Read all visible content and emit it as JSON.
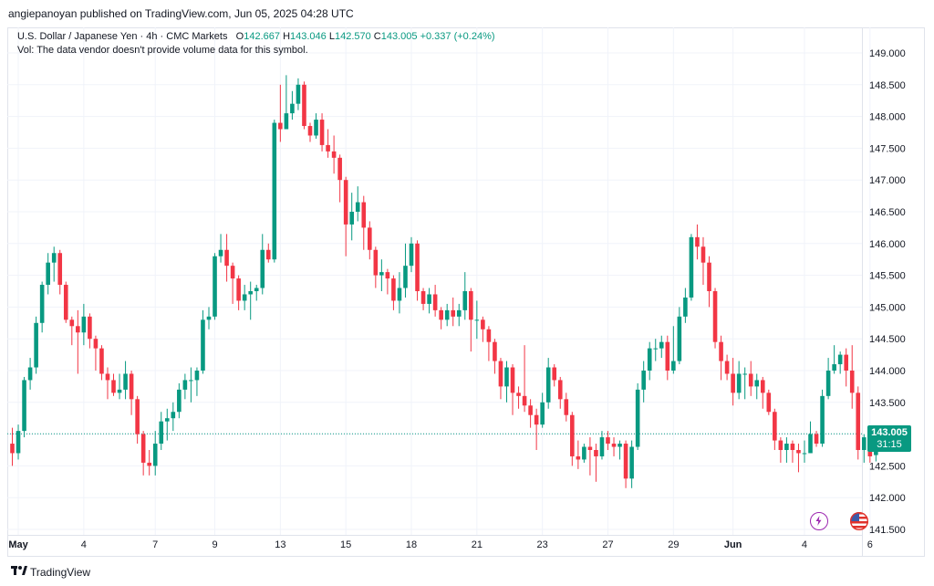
{
  "header": {
    "text": "angiepanoyan published on TradingView.com, Jun 05, 2025 04:28 UTC"
  },
  "legend": {
    "title": "U.S. Dollar / Japanese Yen · 4h · CMC Markets",
    "o_label": "O",
    "o_value": "142.667",
    "h_label": "H",
    "h_value": "143.046",
    "l_label": "L",
    "l_value": "142.570",
    "c_label": "C",
    "c_value": "143.005",
    "change": "+0.337 (+0.24%)",
    "vol_note": "Vol: The data vendor doesn't provide volume data for this symbol."
  },
  "price_tag": {
    "price": "143.005",
    "timer": "31:15"
  },
  "footer": {
    "brand": "TradingView"
  },
  "icons": [
    "bolt-icon",
    "us-flag-icon",
    "tradingview-logo-icon"
  ],
  "colors": {
    "up": "#089981",
    "down": "#f23645",
    "grid": "#f0f3fa",
    "text": "#131722"
  },
  "chart_data": {
    "type": "candlestick",
    "title": "U.S. Dollar / Japanese Yen · 4h · CMC Markets",
    "interval": "4h",
    "ylim": [
      141.5,
      149.0
    ],
    "y_ticks": [
      "149.000",
      "148.500",
      "148.000",
      "147.500",
      "147.000",
      "146.500",
      "146.000",
      "145.500",
      "145.000",
      "144.500",
      "144.000",
      "143.500",
      "143.000",
      "142.500",
      "142.000",
      "141.500"
    ],
    "x_ticks": [
      {
        "label": "May",
        "index": 1
      },
      {
        "label": "4",
        "index": 12
      },
      {
        "label": "7",
        "index": 24
      },
      {
        "label": "9",
        "index": 34
      },
      {
        "label": "13",
        "index": 45
      },
      {
        "label": "15",
        "index": 56
      },
      {
        "label": "18",
        "index": 67
      },
      {
        "label": "21",
        "index": 78
      },
      {
        "label": "23",
        "index": 89
      },
      {
        "label": "27",
        "index": 100
      },
      {
        "label": "29",
        "index": 111
      },
      {
        "label": "Jun",
        "index": 121
      },
      {
        "label": "4",
        "index": 133
      },
      {
        "label": "6",
        "index": 144
      }
    ],
    "last_price": 143.005,
    "grid": true,
    "candles": [
      [
        142.85,
        142.7,
        143.1,
        142.5
      ],
      [
        142.7,
        143.05,
        143.15,
        142.6
      ],
      [
        143.05,
        143.85,
        143.9,
        142.95
      ],
      [
        143.85,
        144.05,
        144.2,
        143.7
      ],
      [
        144.05,
        144.75,
        144.85,
        143.95
      ],
      [
        144.75,
        145.35,
        145.4,
        144.6
      ],
      [
        145.35,
        145.7,
        145.85,
        145.2
      ],
      [
        145.7,
        145.85,
        145.95,
        145.4
      ],
      [
        145.85,
        145.35,
        145.9,
        145.2
      ],
      [
        145.35,
        144.8,
        145.4,
        144.75
      ],
      [
        144.8,
        144.7,
        144.85,
        144.4
      ],
      [
        144.7,
        144.6,
        144.95,
        143.95
      ],
      [
        144.6,
        144.85,
        145.05,
        144.4
      ],
      [
        144.85,
        144.5,
        144.9,
        144.35
      ],
      [
        144.5,
        144.35,
        144.55,
        144.0
      ],
      [
        144.35,
        143.95,
        144.4,
        143.85
      ],
      [
        143.95,
        143.85,
        144.05,
        143.55
      ],
      [
        143.85,
        143.65,
        143.95,
        143.6
      ],
      [
        143.65,
        143.7,
        143.95,
        143.55
      ],
      [
        143.7,
        143.95,
        144.15,
        143.55
      ],
      [
        143.95,
        143.55,
        144.0,
        143.3
      ],
      [
        143.55,
        143.0,
        143.6,
        142.85
      ],
      [
        143.0,
        142.55,
        143.05,
        142.35
      ],
      [
        142.55,
        142.5,
        142.75,
        142.35
      ],
      [
        142.5,
        142.85,
        143.05,
        142.35
      ],
      [
        142.85,
        143.2,
        143.35,
        142.75
      ],
      [
        143.2,
        143.25,
        143.4,
        142.9
      ],
      [
        143.25,
        143.35,
        143.5,
        143.05
      ],
      [
        143.35,
        143.7,
        143.8,
        143.25
      ],
      [
        143.7,
        143.85,
        143.95,
        143.55
      ],
      [
        143.85,
        143.85,
        144.05,
        143.5
      ],
      [
        143.85,
        144.0,
        144.05,
        143.6
      ],
      [
        144.0,
        144.8,
        144.95,
        143.95
      ],
      [
        144.8,
        144.85,
        145.0,
        144.65
      ],
      [
        144.85,
        145.8,
        145.85,
        144.8
      ],
      [
        145.8,
        145.9,
        146.15,
        145.7
      ],
      [
        145.9,
        145.65,
        146.15,
        145.4
      ],
      [
        145.65,
        145.45,
        145.7,
        145.05
      ],
      [
        145.45,
        145.1,
        145.5,
        144.95
      ],
      [
        145.1,
        145.2,
        145.35,
        144.95
      ],
      [
        145.2,
        145.25,
        145.4,
        144.8
      ],
      [
        145.25,
        145.3,
        145.35,
        145.1
      ],
      [
        145.3,
        145.9,
        146.15,
        145.2
      ],
      [
        145.9,
        145.75,
        146.0,
        145.7
      ],
      [
        145.75,
        147.9,
        147.95,
        145.7
      ],
      [
        147.9,
        147.8,
        148.5,
        147.6
      ],
      [
        147.8,
        148.05,
        148.65,
        147.85
      ],
      [
        148.05,
        148.2,
        148.4,
        147.95
      ],
      [
        148.2,
        148.5,
        148.6,
        148.1
      ],
      [
        148.5,
        147.85,
        148.55,
        147.8
      ],
      [
        147.85,
        147.7,
        147.9,
        147.6
      ],
      [
        147.7,
        147.95,
        148.05,
        147.65
      ],
      [
        147.95,
        147.55,
        148.05,
        147.45
      ],
      [
        147.55,
        147.45,
        147.8,
        147.35
      ],
      [
        147.45,
        147.35,
        147.7,
        147.1
      ],
      [
        147.35,
        147.0,
        147.4,
        146.65
      ],
      [
        147.0,
        146.3,
        147.05,
        145.8
      ],
      [
        146.3,
        146.5,
        146.8,
        146.05
      ],
      [
        146.5,
        146.65,
        146.9,
        146.35
      ],
      [
        146.65,
        146.25,
        146.75,
        145.9
      ],
      [
        146.25,
        145.9,
        146.35,
        145.75
      ],
      [
        145.9,
        145.5,
        145.95,
        145.3
      ],
      [
        145.5,
        145.55,
        145.75,
        145.25
      ],
      [
        145.55,
        145.45,
        145.6,
        145.2
      ],
      [
        145.45,
        145.1,
        145.5,
        144.95
      ],
      [
        145.1,
        145.3,
        145.55,
        144.9
      ],
      [
        145.3,
        145.65,
        146.0,
        145.15
      ],
      [
        145.65,
        146.0,
        146.1,
        145.55
      ],
      [
        146.0,
        145.25,
        146.05,
        145.1
      ],
      [
        145.25,
        145.05,
        145.3,
        144.95
      ],
      [
        145.05,
        145.2,
        145.3,
        144.9
      ],
      [
        145.2,
        144.95,
        145.35,
        144.85
      ],
      [
        144.95,
        144.8,
        145.0,
        144.65
      ],
      [
        144.8,
        144.95,
        145.05,
        144.7
      ],
      [
        144.95,
        144.85,
        145.15,
        144.7
      ],
      [
        144.85,
        144.95,
        145.05,
        144.7
      ],
      [
        144.95,
        145.25,
        145.55,
        144.8
      ],
      [
        145.25,
        144.8,
        145.3,
        144.3
      ],
      [
        144.8,
        144.8,
        145.1,
        144.5
      ],
      [
        144.8,
        144.65,
        144.85,
        144.45
      ],
      [
        144.65,
        144.45,
        144.7,
        144.15
      ],
      [
        144.45,
        144.15,
        144.5,
        143.95
      ],
      [
        144.15,
        143.75,
        144.2,
        143.55
      ],
      [
        143.75,
        144.05,
        144.15,
        143.5
      ],
      [
        144.05,
        143.65,
        144.1,
        143.3
      ],
      [
        143.65,
        143.6,
        143.75,
        143.4
      ],
      [
        143.6,
        143.45,
        144.4,
        143.35
      ],
      [
        143.45,
        143.3,
        143.55,
        143.1
      ],
      [
        143.3,
        143.15,
        143.4,
        142.75
      ],
      [
        143.15,
        143.5,
        143.65,
        143.1
      ],
      [
        143.5,
        144.05,
        144.2,
        143.4
      ],
      [
        144.05,
        143.85,
        144.1,
        143.75
      ],
      [
        143.85,
        143.55,
        143.9,
        143.4
      ],
      [
        143.55,
        143.3,
        143.65,
        143.2
      ],
      [
        143.3,
        142.65,
        143.35,
        142.5
      ],
      [
        142.65,
        142.6,
        142.9,
        142.45
      ],
      [
        142.6,
        142.8,
        142.85,
        142.55
      ],
      [
        142.8,
        142.75,
        142.95,
        142.35
      ],
      [
        142.75,
        142.65,
        142.85,
        142.25
      ],
      [
        142.65,
        142.95,
        143.05,
        142.6
      ],
      [
        142.95,
        142.85,
        143.05,
        142.75
      ],
      [
        142.85,
        142.8,
        142.95,
        142.65
      ],
      [
        142.8,
        142.85,
        142.9,
        142.6
      ],
      [
        142.85,
        142.3,
        142.9,
        142.15
      ],
      [
        142.3,
        142.8,
        142.9,
        142.15
      ],
      [
        142.8,
        143.7,
        143.8,
        142.75
      ],
      [
        143.7,
        144.0,
        144.15,
        143.5
      ],
      [
        144.0,
        144.35,
        144.45,
        143.85
      ],
      [
        144.35,
        144.35,
        144.5,
        144.15
      ],
      [
        144.35,
        144.45,
        144.55,
        144.2
      ],
      [
        144.45,
        144.0,
        144.55,
        143.85
      ],
      [
        144.0,
        144.15,
        144.7,
        143.95
      ],
      [
        144.15,
        144.85,
        145.0,
        144.1
      ],
      [
        144.85,
        145.15,
        145.3,
        144.75
      ],
      [
        145.15,
        146.1,
        146.15,
        145.1
      ],
      [
        146.1,
        145.95,
        146.3,
        145.75
      ],
      [
        145.95,
        145.7,
        146.1,
        145.35
      ],
      [
        145.7,
        145.25,
        145.8,
        145.0
      ],
      [
        145.25,
        144.45,
        145.3,
        144.35
      ],
      [
        144.45,
        144.15,
        144.55,
        143.85
      ],
      [
        144.15,
        143.95,
        144.25,
        143.85
      ],
      [
        143.95,
        143.65,
        144.2,
        143.45
      ],
      [
        143.65,
        143.95,
        144.15,
        143.55
      ],
      [
        143.95,
        143.95,
        144.05,
        143.55
      ],
      [
        143.95,
        143.75,
        144.15,
        143.6
      ],
      [
        143.75,
        143.85,
        143.95,
        143.55
      ],
      [
        143.85,
        143.65,
        143.9,
        143.4
      ],
      [
        143.65,
        143.35,
        143.7,
        143.3
      ],
      [
        143.35,
        142.9,
        143.4,
        142.75
      ],
      [
        142.9,
        142.75,
        142.95,
        142.55
      ],
      [
        142.75,
        142.85,
        142.95,
        142.55
      ],
      [
        142.85,
        142.75,
        142.9,
        142.55
      ],
      [
        142.75,
        142.7,
        142.85,
        142.4
      ],
      [
        142.7,
        142.7,
        142.9,
        142.55
      ],
      [
        142.7,
        143.0,
        143.2,
        142.7
      ],
      [
        143.0,
        142.85,
        143.05,
        142.8
      ],
      [
        142.85,
        143.6,
        143.7,
        142.8
      ],
      [
        143.6,
        144.0,
        144.2,
        143.55
      ],
      [
        144.0,
        144.1,
        144.4,
        143.95
      ],
      [
        144.1,
        144.25,
        144.3,
        143.95
      ],
      [
        144.25,
        144.0,
        144.35,
        143.75
      ],
      [
        144.0,
        143.65,
        144.4,
        143.4
      ],
      [
        143.65,
        142.75,
        143.75,
        142.6
      ],
      [
        142.75,
        142.95,
        143.0,
        142.55
      ],
      [
        142.95,
        142.65,
        143.0,
        142.55
      ],
      [
        142.67,
        143.0,
        143.05,
        142.57
      ]
    ]
  }
}
